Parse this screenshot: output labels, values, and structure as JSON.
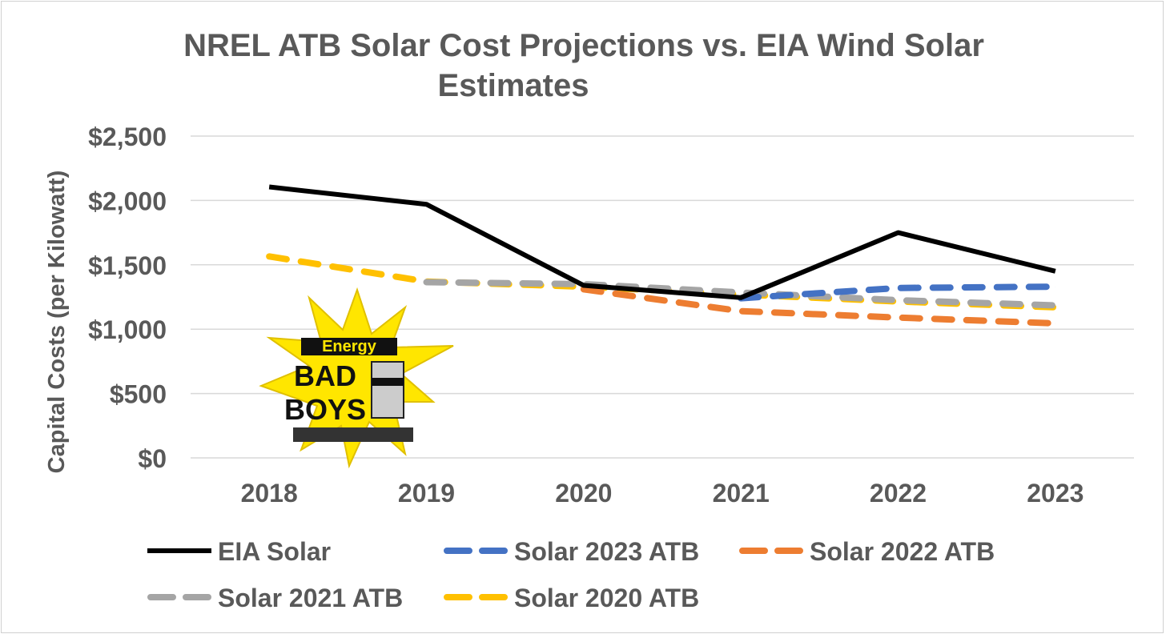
{
  "chart_data": {
    "type": "line",
    "title_lines": [
      "NREL ATB Solar Cost Projections vs. EIA Wind Solar",
      "Estimates"
    ],
    "xlabel": "",
    "ylabel": "Capital Costs (per Kilowatt)",
    "categories": [
      "2018",
      "2019",
      "2020",
      "2021",
      "2022",
      "2023"
    ],
    "ylim": [
      0,
      2500
    ],
    "yticks": [
      0,
      500,
      1000,
      1500,
      2000,
      2500
    ],
    "ytick_labels": [
      "$0",
      "$500",
      "$1,000",
      "$1,500",
      "$2,000",
      "$2,500"
    ],
    "grid": true,
    "legend_position": "bottom",
    "series": [
      {
        "name": "EIA Solar",
        "color": "#000000",
        "dashed": false,
        "values": [
          2105,
          1970,
          1340,
          1245,
          1750,
          1450
        ]
      },
      {
        "name": "Solar 2023 ATB",
        "color": "#4472c4",
        "dashed": true,
        "values": [
          null,
          null,
          null,
          1240,
          1320,
          1330
        ]
      },
      {
        "name": "Solar 2022 ATB",
        "color": "#ed7d31",
        "dashed": true,
        "values": [
          null,
          null,
          1310,
          1140,
          1090,
          1045
        ]
      },
      {
        "name": "Solar 2021 ATB",
        "color": "#a5a5a5",
        "dashed": true,
        "values": [
          null,
          1365,
          1350,
          1285,
          1225,
          1185
        ]
      },
      {
        "name": "Solar 2020 ATB",
        "color": "#ffc000",
        "dashed": true,
        "values": [
          1565,
          1370,
          1330,
          1270,
          1215,
          1170
        ]
      }
    ]
  },
  "logo": {
    "text": "Energy BAD BOYS"
  }
}
